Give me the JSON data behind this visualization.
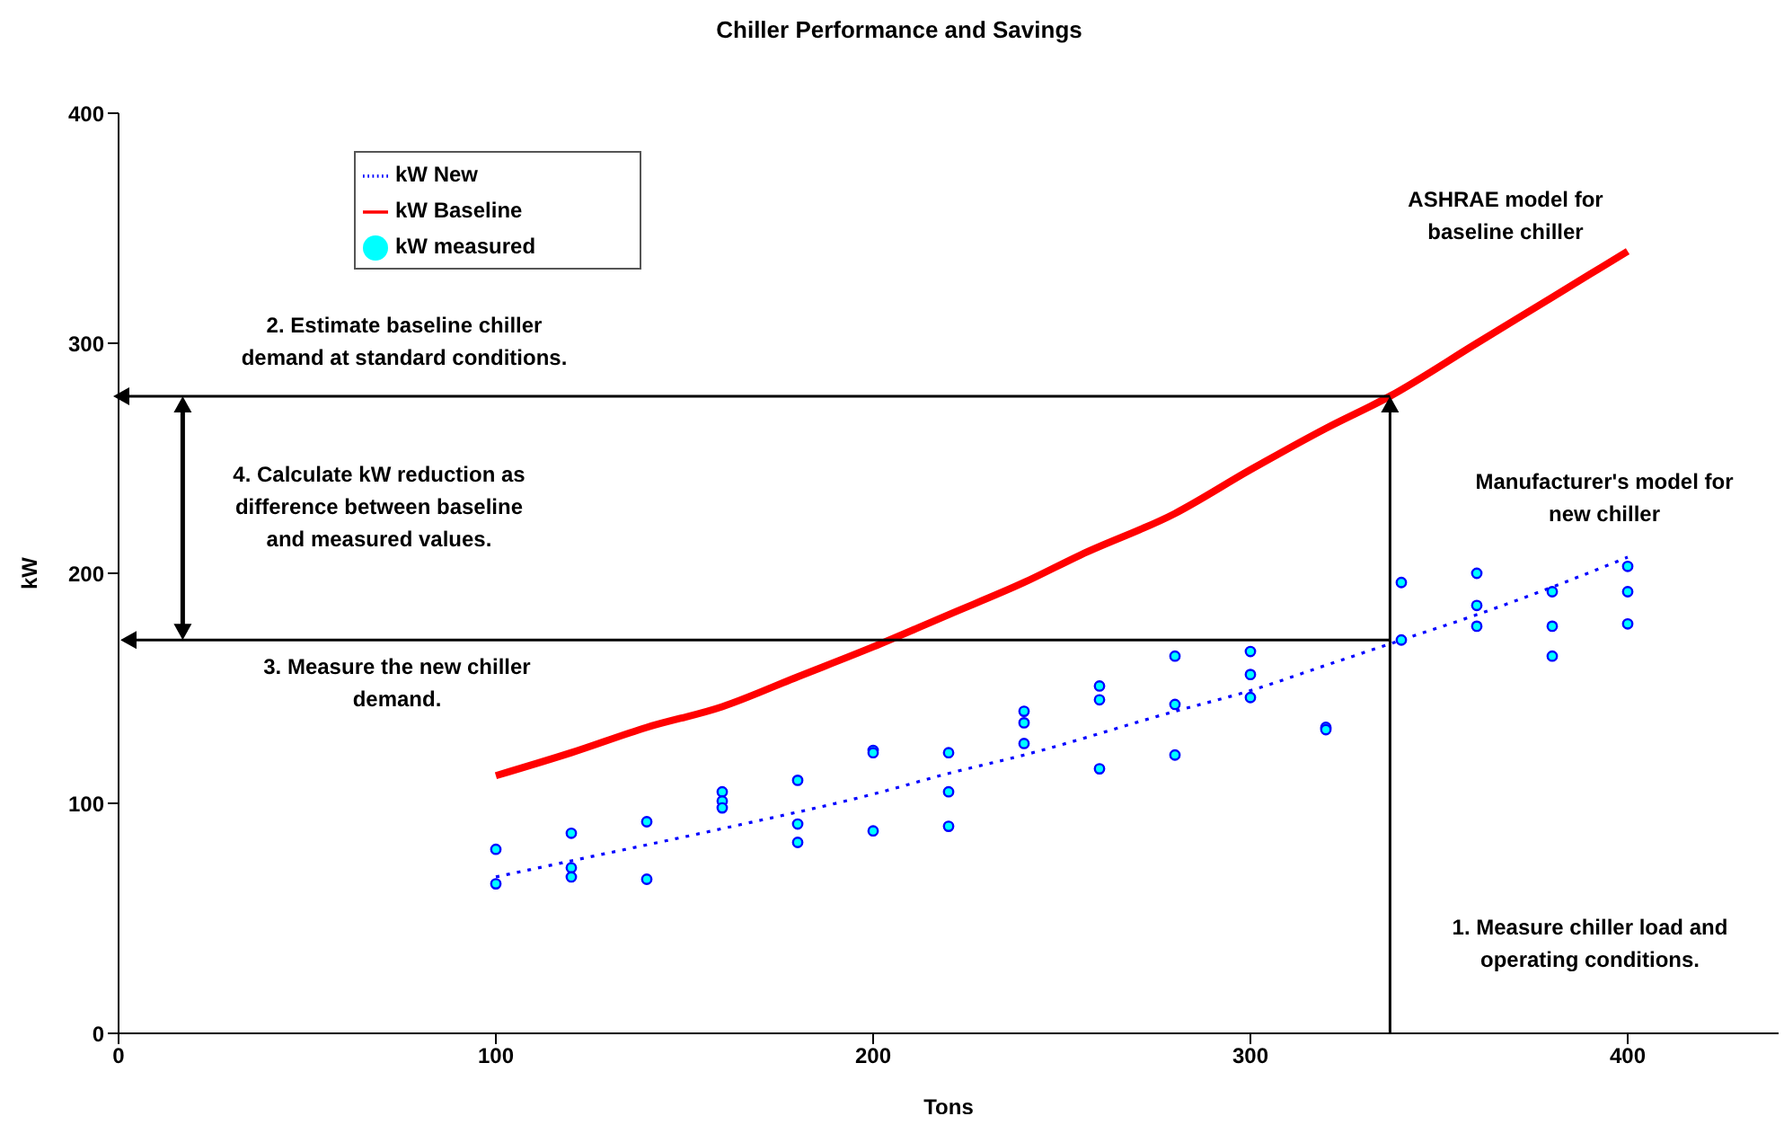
{
  "chart_data": {
    "type": "line",
    "title": "Chiller Performance and Savings",
    "xlabel": "Tons",
    "ylabel": "kW",
    "xlim": [
      0,
      440
    ],
    "xticks": [
      0,
      100,
      200,
      300,
      400
    ],
    "ylim": [
      0,
      400
    ],
    "yticks": [
      0,
      100,
      200,
      300,
      400
    ],
    "grid": false,
    "legend": "top left",
    "series": [
      {
        "name": "kW New",
        "line_style": "dotted",
        "marker": "none",
        "color": "#0000ff",
        "x": [
          100,
          120,
          160,
          200,
          220,
          240,
          280,
          300,
          320,
          340,
          360,
          380,
          400
        ],
        "values": [
          68,
          75,
          89,
          104,
          113,
          121,
          140,
          149,
          160,
          171,
          182,
          194,
          207
        ]
      },
      {
        "name": "kW Baseline",
        "line_style": "solid",
        "marker": "none",
        "color": "#ff0000",
        "x": [
          100,
          120,
          140,
          160,
          180,
          200,
          220,
          240,
          255,
          280,
          300,
          320,
          337,
          360,
          380,
          400
        ],
        "values": [
          112,
          122,
          133,
          142,
          155,
          168,
          182,
          196,
          208,
          226,
          245,
          263,
          277,
          300,
          320,
          340
        ]
      },
      {
        "name": "kW measured",
        "type": "scatter",
        "marker": "circle",
        "color": "#00ffff",
        "x": [
          100,
          100,
          120,
          120,
          120,
          140,
          140,
          160,
          160,
          160,
          180,
          180,
          180,
          200,
          200,
          200,
          220,
          220,
          220,
          240,
          240,
          240,
          260,
          260,
          260,
          280,
          280,
          280,
          300,
          300,
          300,
          320,
          320,
          340,
          340,
          360,
          360,
          360,
          380,
          380,
          380,
          400,
          400,
          400
        ],
        "values": [
          80,
          65,
          87,
          72,
          68,
          92,
          67,
          105,
          101,
          98,
          110,
          91,
          83,
          123,
          122,
          88,
          122,
          105,
          90,
          140,
          135,
          126,
          151,
          145,
          115,
          164,
          143,
          121,
          166,
          156,
          146,
          133,
          132,
          196,
          171,
          200,
          186,
          177,
          192,
          177,
          164,
          203,
          192,
          178
        ]
      }
    ],
    "annotations": [
      "ASHRAE model for baseline chiller",
      "2. Estimate baseline chiller demand at standard conditions.",
      "4. Calculate kW reduction as difference between baseline and measured values.",
      "3. Measure the new chiller demand.",
      "Manufacturer's model for new chiller",
      "1. Measure chiller load and operating conditions."
    ]
  }
}
